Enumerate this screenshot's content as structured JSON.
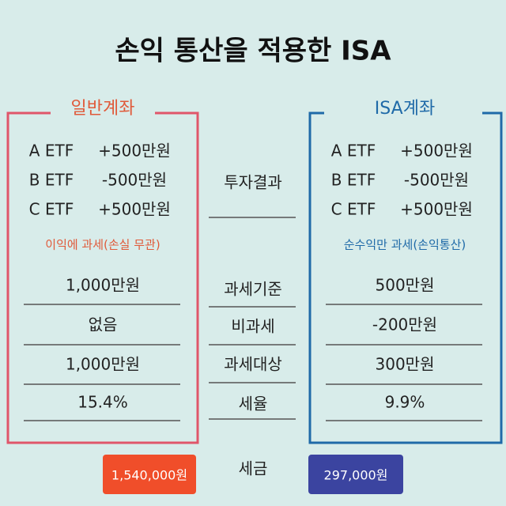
{
  "title": "손익 통산을 적용한 ISA",
  "middle": {
    "labels": [
      "투자결과",
      "과세기준",
      "비과세",
      "과세대상",
      "세율",
      "세금"
    ]
  },
  "general": {
    "label": "일반계좌",
    "holdings": [
      {
        "name": "A ETF",
        "amount": "+500만원"
      },
      {
        "name": "B ETF",
        "amount": "-500만원"
      },
      {
        "name": "C ETF",
        "amount": "+500만원"
      }
    ],
    "note": "이익에 과세(손실 무관)",
    "values": [
      "1,000만원",
      "없음",
      "1,000만원",
      "15.4%"
    ],
    "tax": "1,540,000원"
  },
  "isa": {
    "label": "ISA계좌",
    "holdings": [
      {
        "name": "A ETF",
        "amount": "+500만원"
      },
      {
        "name": "B ETF",
        "amount": "-500만원"
      },
      {
        "name": "C ETF",
        "amount": "+500만원"
      }
    ],
    "note": "순수익만 과세(손익통산)",
    "values": [
      "500만원",
      "-200만원",
      "300만원",
      "9.9%"
    ],
    "tax": "297,000원"
  }
}
